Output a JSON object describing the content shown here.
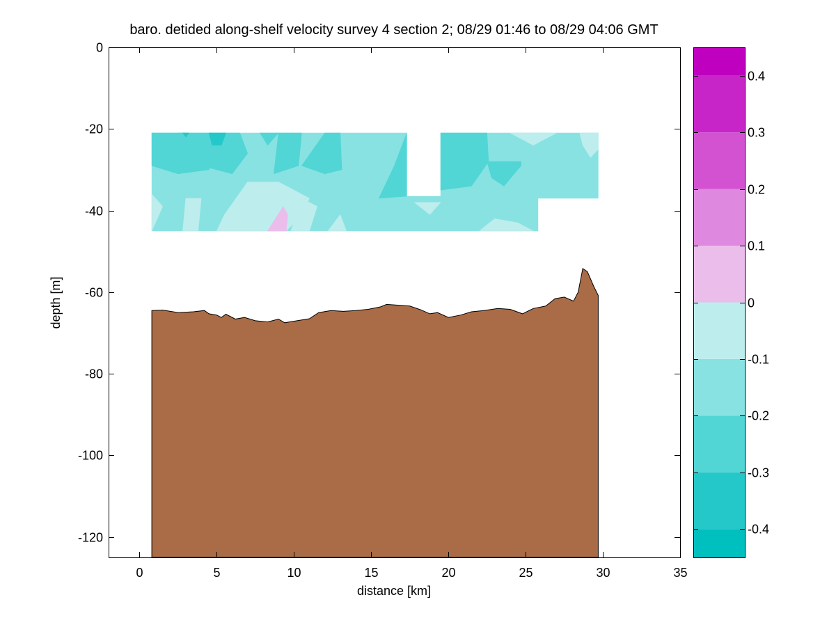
{
  "chart_data": {
    "type": "contour",
    "title": "baro. detided along-shelf velocity survey 4 section 2; 08/29 01:46 to 08/29 04:06 GMT",
    "xlabel": "distance [km]",
    "ylabel": "depth [m]",
    "xlim": [
      -2,
      35
    ],
    "ylim": [
      -125,
      0
    ],
    "xticks": [
      0,
      5,
      10,
      15,
      20,
      25,
      30,
      35
    ],
    "yticks": [
      -120,
      -100,
      -80,
      -60,
      -40,
      -20,
      0
    ],
    "colorbar": {
      "clim": [
        -0.45,
        0.45
      ],
      "ticks": [
        "-0.4",
        "-0.3",
        "-0.2",
        "-0.1",
        "0",
        "0.1",
        "0.2",
        "0.3",
        "0.4"
      ],
      "levels": [
        {
          "from": -0.45,
          "to": -0.4,
          "color": "#00bfbf"
        },
        {
          "from": -0.4,
          "to": -0.3,
          "color": "#25c8c8"
        },
        {
          "from": -0.3,
          "to": -0.2,
          "color": "#52d5d5"
        },
        {
          "from": -0.2,
          "to": -0.1,
          "color": "#88e2e2"
        },
        {
          "from": -0.1,
          "to": 0.0,
          "color": "#bdeded"
        },
        {
          "from": 0.0,
          "to": 0.1,
          "color": "#ebbdeb"
        },
        {
          "from": 0.1,
          "to": 0.2,
          "color": "#df88df"
        },
        {
          "from": 0.2,
          "to": 0.3,
          "color": "#d252d2"
        },
        {
          "from": 0.3,
          "to": 0.4,
          "color": "#c825c8"
        },
        {
          "from": 0.4,
          "to": 0.45,
          "color": "#bf00bf"
        }
      ]
    },
    "velocity_regions": [
      {
        "level": -0.15,
        "polygon": [
          [
            0.8,
            -21
          ],
          [
            17.3,
            -21
          ],
          [
            17.3,
            -36.5
          ],
          [
            19.5,
            -36.5
          ],
          [
            19.5,
            -21
          ],
          [
            29.7,
            -21
          ],
          [
            29.7,
            -37
          ],
          [
            25.8,
            -37
          ],
          [
            25.8,
            -45
          ],
          [
            0.8,
            -45
          ]
        ]
      },
      {
        "level": -0.25,
        "polygon": [
          [
            0.8,
            -21
          ],
          [
            3,
            -21
          ],
          [
            5,
            -25
          ],
          [
            4.5,
            -30
          ],
          [
            2.5,
            -31
          ],
          [
            0.8,
            -29
          ]
        ]
      },
      {
        "level": -0.25,
        "polygon": [
          [
            2.5,
            -21
          ],
          [
            6.5,
            -21
          ],
          [
            7,
            -26
          ],
          [
            6,
            -31
          ],
          [
            4,
            -29
          ],
          [
            3,
            -25
          ]
        ]
      },
      {
        "level": -0.35,
        "polygon": [
          [
            4.5,
            -21
          ],
          [
            5.6,
            -21
          ],
          [
            5.3,
            -24
          ],
          [
            4.7,
            -24
          ]
        ]
      },
      {
        "level": -0.35,
        "polygon": [
          [
            2.8,
            -21
          ],
          [
            3.2,
            -21
          ],
          [
            3,
            -22
          ]
        ]
      },
      {
        "level": -0.25,
        "polygon": [
          [
            7.8,
            -21
          ],
          [
            9,
            -21
          ],
          [
            8.3,
            -24
          ]
        ]
      },
      {
        "level": -0.25,
        "polygon": [
          [
            9,
            -21
          ],
          [
            10.5,
            -21
          ],
          [
            10.3,
            -29
          ],
          [
            8.7,
            -31
          ]
        ]
      },
      {
        "level": -0.25,
        "polygon": [
          [
            12,
            -21
          ],
          [
            13,
            -21
          ],
          [
            13.1,
            -30
          ],
          [
            12,
            -31
          ],
          [
            10.5,
            -29
          ]
        ]
      },
      {
        "level": -0.25,
        "polygon": [
          [
            17.3,
            -21
          ],
          [
            17.3,
            -36.5
          ],
          [
            15.5,
            -37
          ],
          [
            16.5,
            -29
          ]
        ]
      },
      {
        "level": -0.25,
        "polygon": [
          [
            19.5,
            -21
          ],
          [
            22.5,
            -21
          ],
          [
            22.6,
            -28
          ],
          [
            21.5,
            -34
          ],
          [
            19.5,
            -35
          ]
        ]
      },
      {
        "level": -0.25,
        "polygon": [
          [
            22.5,
            -28
          ],
          [
            24.7,
            -28
          ],
          [
            24.7,
            -29
          ],
          [
            23.6,
            -34
          ],
          [
            22.8,
            -32
          ]
        ]
      },
      {
        "level": -0.05,
        "polygon": [
          [
            0.8,
            -36
          ],
          [
            1.5,
            -39
          ],
          [
            0.8,
            -45
          ]
        ]
      },
      {
        "level": -0.05,
        "polygon": [
          [
            3,
            -37
          ],
          [
            4,
            -37
          ],
          [
            3.8,
            -45
          ],
          [
            2.8,
            -45
          ]
        ]
      },
      {
        "level": -0.05,
        "polygon": [
          [
            7,
            -33
          ],
          [
            9,
            -33
          ],
          [
            10,
            -35
          ],
          [
            11,
            -37
          ],
          [
            10.5,
            -41
          ],
          [
            9.5,
            -45
          ],
          [
            5,
            -45
          ],
          [
            5.5,
            -41
          ]
        ]
      },
      {
        "level": -0.05,
        "polygon": [
          [
            10.5,
            -37
          ],
          [
            11.5,
            -39
          ],
          [
            11,
            -45
          ],
          [
            9.8,
            -45
          ]
        ]
      },
      {
        "level": -0.05,
        "polygon": [
          [
            13,
            -41
          ],
          [
            13.4,
            -45
          ],
          [
            12.2,
            -45
          ]
        ]
      },
      {
        "level": -0.05,
        "polygon": [
          [
            17.8,
            -38
          ],
          [
            19.5,
            -38
          ],
          [
            18.8,
            -41
          ]
        ]
      },
      {
        "level": -0.05,
        "polygon": [
          [
            23,
            -42
          ],
          [
            24.5,
            -43
          ],
          [
            25.5,
            -45
          ],
          [
            22,
            -45
          ]
        ]
      },
      {
        "level": -0.05,
        "polygon": [
          [
            24,
            -21
          ],
          [
            26,
            -21
          ],
          [
            27,
            -21
          ],
          [
            25.5,
            -24
          ]
        ]
      },
      {
        "level": -0.05,
        "polygon": [
          [
            28.5,
            -21
          ],
          [
            29.7,
            -21
          ],
          [
            29.7,
            -25
          ],
          [
            29.2,
            -27
          ],
          [
            28.7,
            -24
          ]
        ]
      },
      {
        "level": 0.05,
        "polygon": [
          [
            8.3,
            -45
          ],
          [
            9.3,
            -39
          ],
          [
            9.6,
            -41
          ],
          [
            9.5,
            -45
          ]
        ]
      }
    ],
    "bathymetry": [
      [
        0.8,
        -64.5
      ],
      [
        1.5,
        -64.4
      ],
      [
        2.5,
        -65
      ],
      [
        3.5,
        -64.8
      ],
      [
        4.2,
        -64.5
      ],
      [
        4.5,
        -65.3
      ],
      [
        5,
        -65.6
      ],
      [
        5.3,
        -66.2
      ],
      [
        5.6,
        -65.4
      ],
      [
        6.2,
        -66.6
      ],
      [
        6.8,
        -66.2
      ],
      [
        7.5,
        -67
      ],
      [
        8.3,
        -67.3
      ],
      [
        9,
        -66.6
      ],
      [
        9.4,
        -67.5
      ],
      [
        10.2,
        -67
      ],
      [
        11,
        -66.5
      ],
      [
        11.6,
        -65
      ],
      [
        12.4,
        -64.5
      ],
      [
        13.2,
        -64.7
      ],
      [
        14,
        -64.5
      ],
      [
        14.8,
        -64.2
      ],
      [
        15.6,
        -63.6
      ],
      [
        16,
        -63
      ],
      [
        16.8,
        -63.2
      ],
      [
        17.5,
        -63.4
      ],
      [
        18.2,
        -64.3
      ],
      [
        18.8,
        -65.3
      ],
      [
        19.3,
        -65
      ],
      [
        20,
        -66.2
      ],
      [
        20.8,
        -65.6
      ],
      [
        21.5,
        -64.8
      ],
      [
        22.3,
        -64.5
      ],
      [
        23.2,
        -64
      ],
      [
        24,
        -64.2
      ],
      [
        24.8,
        -65.3
      ],
      [
        25.5,
        -64
      ],
      [
        26.3,
        -63.4
      ],
      [
        26.9,
        -61.6
      ],
      [
        27.5,
        -61.2
      ],
      [
        28.1,
        -62.2
      ],
      [
        28.4,
        -60
      ],
      [
        28.7,
        -54.2
      ],
      [
        29,
        -55
      ],
      [
        29.4,
        -58.5
      ],
      [
        29.7,
        -60.8
      ],
      [
        29.7,
        -125
      ],
      [
        0.8,
        -125
      ]
    ]
  }
}
